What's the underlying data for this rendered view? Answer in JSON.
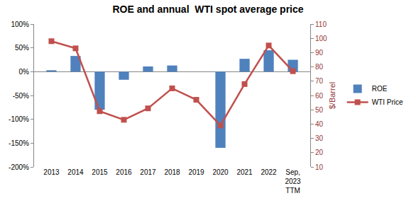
{
  "chart_data": {
    "type": "bar",
    "title": "ROE and annual  WTI spot average price",
    "categories": [
      "2013",
      "2014",
      "2015",
      "2016",
      "2017",
      "2018",
      "2019",
      "2020",
      "2021",
      "2022",
      "Sep, 2023 TTM"
    ],
    "series": [
      {
        "name": "ROE",
        "type": "bar",
        "color": "#4f81bd",
        "values": [
          3,
          33,
          -80,
          -17,
          11,
          13,
          0,
          -160,
          27,
          45,
          25
        ]
      },
      {
        "name": "WTI Price",
        "type": "line",
        "axis": "y2",
        "color": "#c0504d",
        "marker": "square",
        "line_style": "solid",
        "values": [
          98,
          93,
          49,
          43,
          51,
          65,
          57,
          39,
          68,
          95,
          77
        ]
      }
    ],
    "ylim": [
      -200,
      100
    ],
    "yticks": [
      {
        "value": -200,
        "label": "-200%"
      },
      {
        "value": -150,
        "label": "-150%"
      },
      {
        "value": -100,
        "label": "-100%"
      },
      {
        "value": -50,
        "label": "-50%"
      },
      {
        "value": 0,
        "label": "0%"
      },
      {
        "value": 50,
        "label": "50%"
      },
      {
        "value": 100,
        "label": "100%"
      }
    ],
    "y2label": "$/Barrel",
    "y2lim": [
      10,
      110
    ],
    "y2ticks": [
      10,
      20,
      30,
      40,
      50,
      60,
      70,
      80,
      90,
      100,
      110
    ],
    "grid": false,
    "legend": "right"
  }
}
